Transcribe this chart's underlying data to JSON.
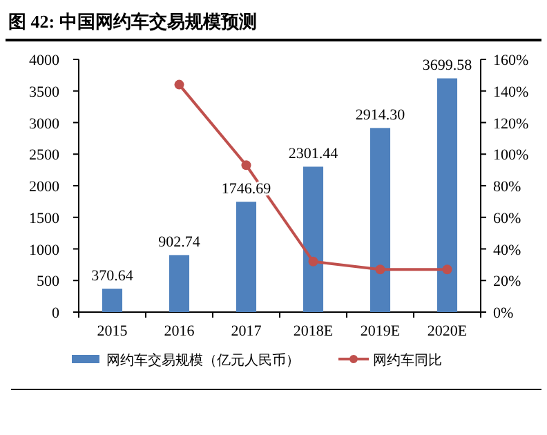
{
  "chart_data": {
    "type": "bar",
    "title": "图 42: 中国网约车交易规模预测",
    "categories": [
      "2015",
      "2016",
      "2017",
      "2018E",
      "2019E",
      "2020E"
    ],
    "series": [
      {
        "name": "网约车交易规模（亿元人民币）",
        "color": "#4f81bd",
        "values": [
          370.64,
          902.74,
          1746.69,
          2301.44,
          2914.3,
          3699.58
        ],
        "value_labels": [
          "370.64",
          "902.74",
          "1746.69",
          "2301.44",
          "2914.30",
          "3699.58"
        ]
      },
      {
        "name": "网约车同比",
        "type": "line",
        "axis": "y2",
        "color": "#c0504d",
        "marker": "circle",
        "values": [
          null,
          144,
          93,
          32,
          27,
          27
        ]
      }
    ],
    "ylim": [
      0,
      4000
    ],
    "yticks": [
      0,
      500,
      1000,
      1500,
      2000,
      2500,
      3000,
      3500,
      4000
    ],
    "y2lim": [
      0,
      160
    ],
    "y2ticks": [
      {
        "value": 0,
        "label": "0%"
      },
      {
        "value": 20,
        "label": "20%"
      },
      {
        "value": 40,
        "label": "40%"
      },
      {
        "value": 60,
        "label": "60%"
      },
      {
        "value": 80,
        "label": "80%"
      },
      {
        "value": 100,
        "label": "100%"
      },
      {
        "value": 120,
        "label": "120%"
      },
      {
        "value": 140,
        "label": "140%"
      },
      {
        "value": 160,
        "label": "160%"
      }
    ],
    "legend": "bottom",
    "grid": false
  }
}
